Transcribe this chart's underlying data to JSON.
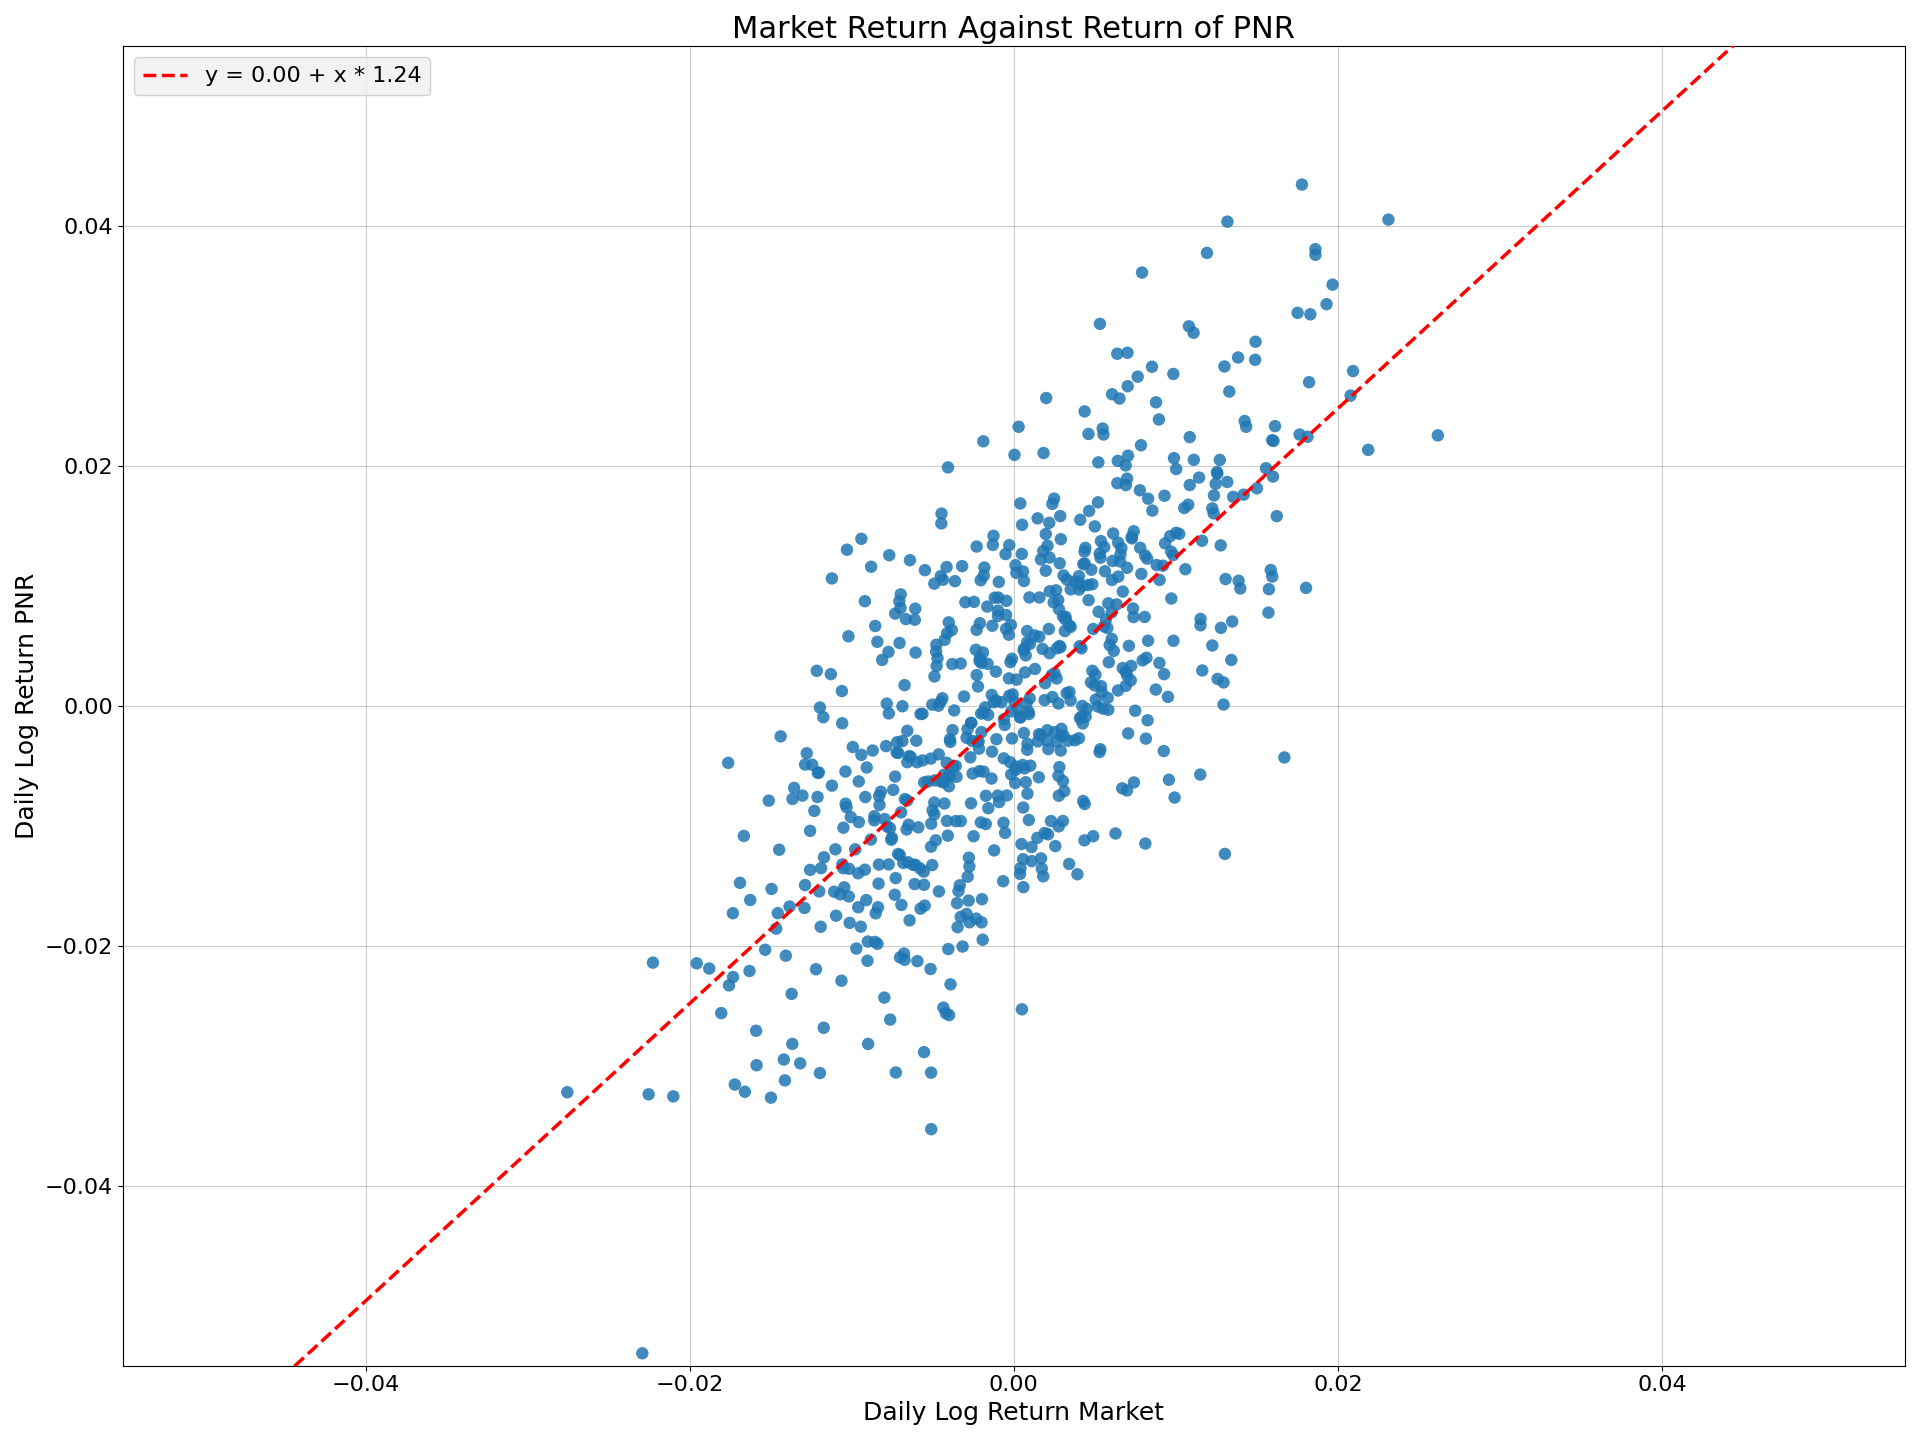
{
  "title": "Market Return Against Return of PNR",
  "xlabel": "Daily Log Return Market",
  "ylabel": "Daily Log Return PNR",
  "intercept": 0.0,
  "slope": 1.24,
  "legend_label": "y = 0.00 + x * 1.24",
  "xlim": [
    -0.055,
    0.055
  ],
  "ylim": [
    -0.055,
    0.055
  ],
  "xticks": [
    -0.04,
    -0.02,
    0.0,
    0.02,
    0.04
  ],
  "yticks": [
    -0.04,
    -0.02,
    0.0,
    0.02,
    0.04
  ],
  "scatter_color": "#1f77b4",
  "line_color": "red",
  "scatter_alpha": 0.85,
  "scatter_size": 80,
  "n_points": 700,
  "market_std": 0.0085,
  "noise_std": 0.01,
  "seed": 42,
  "background_color": "white",
  "grid_color": "gray",
  "grid_alpha": 0.4,
  "title_fontsize": 22,
  "label_fontsize": 18,
  "tick_fontsize": 16,
  "legend_fontsize": 16,
  "figwidth": 19.2,
  "figheight": 14.4,
  "dpi": 100
}
